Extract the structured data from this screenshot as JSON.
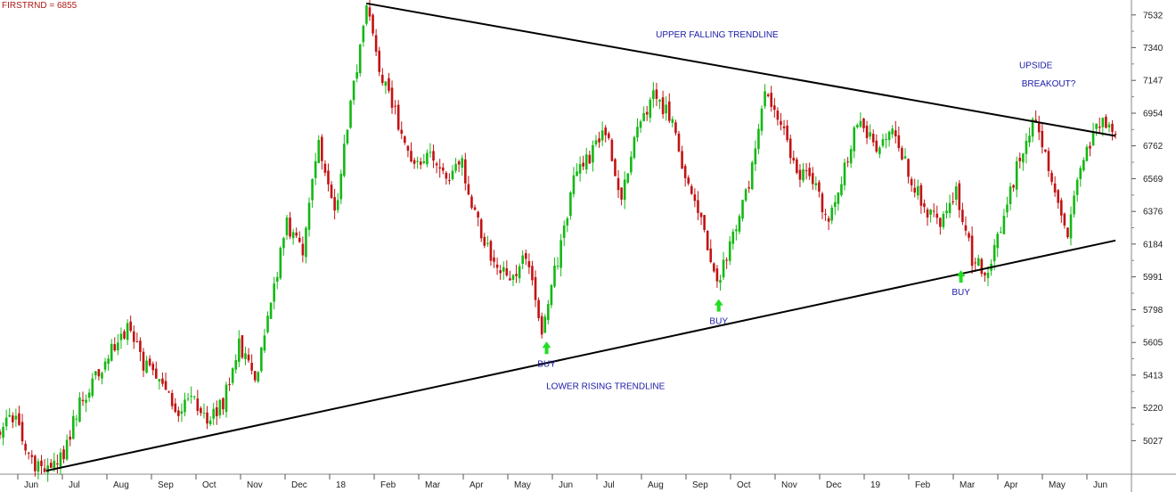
{
  "chart_data": {
    "type": "candlestick",
    "title": "FIRSTRND = 6855",
    "y_axis": {
      "position": "right",
      "ticks": [
        5027,
        5220,
        5413,
        5605,
        5798,
        5991,
        6184,
        6376,
        6569,
        6762,
        6954,
        7147,
        7340,
        7532
      ],
      "ylim": [
        4830,
        7620
      ]
    },
    "x_axis": {
      "ticks": [
        "Jun",
        "Jul",
        "Aug",
        "Sep",
        "Oct",
        "Nov",
        "Dec",
        "18",
        "Feb",
        "Mar",
        "Apr",
        "May",
        "Jun",
        "Jul",
        "Aug",
        "Sep",
        "Oct",
        "Nov",
        "Dec",
        "19",
        "Feb",
        "Mar",
        "Apr",
        "May",
        "Jun"
      ],
      "start_label": "Jun",
      "end_label": "Jun"
    },
    "colors": {
      "up": "#14b814",
      "down": "#c21212",
      "trendline": "#000000",
      "annotation": "#1a1aa6",
      "buy_arrow": "#22dd22"
    },
    "series_anchors": [
      [
        0,
        5100
      ],
      [
        1,
        5170
      ],
      [
        2,
        4890
      ],
      [
        3,
        4860
      ],
      [
        4,
        4960
      ],
      [
        5,
        5240
      ],
      [
        6,
        5400
      ],
      [
        7,
        5560
      ],
      [
        8,
        5700
      ],
      [
        9,
        5480
      ],
      [
        10,
        5420
      ],
      [
        11,
        5180
      ],
      [
        12,
        5320
      ],
      [
        13,
        5130
      ],
      [
        14,
        5250
      ],
      [
        15,
        5600
      ],
      [
        16,
        5380
      ],
      [
        17,
        5850
      ],
      [
        18,
        6300
      ],
      [
        19,
        6120
      ],
      [
        20,
        6800
      ],
      [
        21,
        6340
      ],
      [
        22,
        7000
      ],
      [
        23,
        7560
      ],
      [
        24,
        7150
      ],
      [
        25,
        6900
      ],
      [
        26,
        6620
      ],
      [
        27,
        6750
      ],
      [
        28,
        6560
      ],
      [
        29,
        6650
      ],
      [
        30,
        6300
      ],
      [
        31,
        6050
      ],
      [
        32,
        6000
      ],
      [
        33,
        6100
      ],
      [
        34,
        5680
      ],
      [
        35,
        6100
      ],
      [
        36,
        6550
      ],
      [
        37,
        6700
      ],
      [
        38,
        6850
      ],
      [
        39,
        6460
      ],
      [
        40,
        6900
      ],
      [
        41,
        7050
      ],
      [
        42,
        6950
      ],
      [
        43,
        6600
      ],
      [
        44,
        6300
      ],
      [
        45,
        5950
      ],
      [
        46,
        6250
      ],
      [
        47,
        6550
      ],
      [
        48,
        7050
      ],
      [
        49,
        6900
      ],
      [
        50,
        6600
      ],
      [
        51,
        6560
      ],
      [
        52,
        6300
      ],
      [
        53,
        6650
      ],
      [
        54,
        6950
      ],
      [
        55,
        6700
      ],
      [
        56,
        6900
      ],
      [
        57,
        6600
      ],
      [
        58,
        6400
      ],
      [
        59,
        6300
      ],
      [
        60,
        6500
      ],
      [
        61,
        6100
      ],
      [
        62,
        6000
      ],
      [
        63,
        6350
      ],
      [
        64,
        6700
      ],
      [
        65,
        6950
      ],
      [
        66,
        6550
      ],
      [
        67,
        6250
      ],
      [
        68,
        6700
      ],
      [
        69,
        6900
      ],
      [
        70,
        6830
      ]
    ],
    "trendlines": [
      {
        "name": "UPPER FALLING TRENDLINE",
        "from": [
          23,
          7600
        ],
        "to": [
          70,
          6820
        ]
      },
      {
        "name": "LOWER RISING TRENDLINE",
        "from": [
          2.9,
          4850
        ],
        "to": [
          70,
          6205
        ]
      }
    ],
    "annotations": [
      {
        "text": "UPPER FALLING TRENDLINE",
        "x": 45,
        "y": 7400
      },
      {
        "text": "LOWER RISING TRENDLINE",
        "x": 38,
        "y": 5330
      },
      {
        "text": "UPSIDE",
        "x": 65,
        "y": 7220
      },
      {
        "text": "BREAKOUT?",
        "x": 65.8,
        "y": 7110
      }
    ],
    "buy_signals": [
      {
        "label": "BUY",
        "x": 34.3,
        "y": 5610
      },
      {
        "label": "BUY",
        "x": 45.1,
        "y": 5860
      },
      {
        "label": "BUY",
        "x": 60.3,
        "y": 6030
      }
    ]
  }
}
